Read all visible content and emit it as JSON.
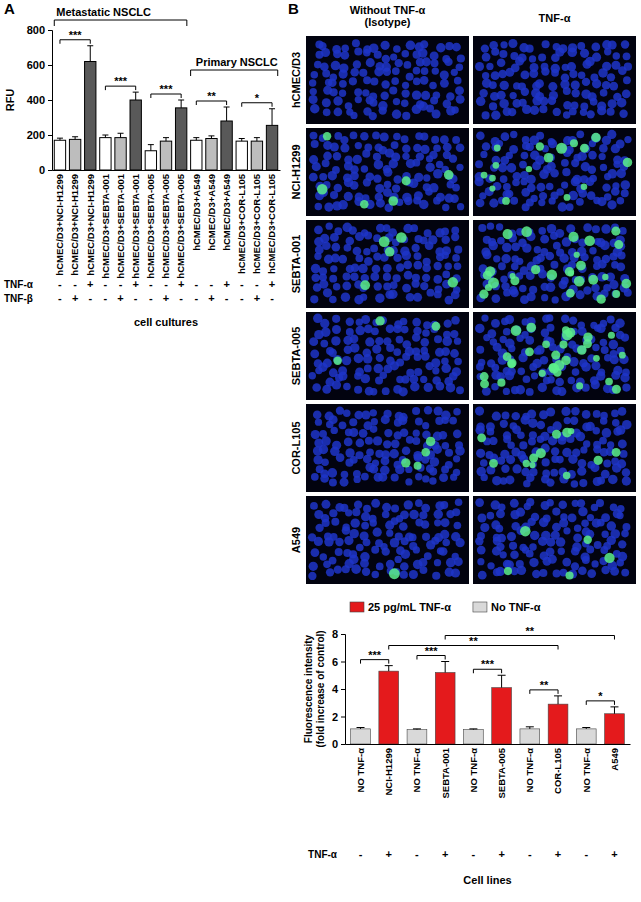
{
  "panel_labels": [
    "A",
    "B"
  ],
  "chart_data": [
    {
      "type": "bar",
      "ylabel": "RFU",
      "xlabel": "cell cultures",
      "categories": [
        "hCMEC/D3+NCI-H1299",
        "hCMEC/D3+NCI-H1299",
        "hCMEC/D3+NCI-H1299",
        "hCMEC/D3+SEBTA-001",
        "hCMEC/D3+SEBTA-001",
        "hCMEC/D3+SEBTA-001",
        "hCMEC/D3+SEBTA-005",
        "hCMEC/D3+SEBTA-005",
        "hCMEC/D3+SEBTA-005",
        "hCMEC/D3+A549",
        "hCMEC/D3+A549",
        "hCMEC/D3+A549",
        "hCMEC/D3+COR-L105",
        "hCMEC/D3+COR-L105",
        "hCMEC/D3+COR-L105"
      ],
      "values": [
        170,
        175,
        620,
        185,
        185,
        400,
        110,
        165,
        355,
        170,
        180,
        280,
        165,
        165,
        255
      ],
      "errors": [
        12,
        15,
        90,
        15,
        25,
        45,
        35,
        20,
        45,
        15,
        15,
        80,
        15,
        20,
        95
      ],
      "colors": [
        "#ffffff",
        "#bdbdbd",
        "#595959",
        "#ffffff",
        "#bdbdbd",
        "#595959",
        "#ffffff",
        "#bdbdbd",
        "#595959",
        "#ffffff",
        "#bdbdbd",
        "#595959",
        "#ffffff",
        "#bdbdbd",
        "#595959"
      ],
      "ylim": [
        0,
        800
      ],
      "yticks": [
        0,
        200,
        400,
        600,
        800
      ],
      "condition_rows": [
        {
          "label": "TNF-α",
          "values": [
            "-",
            "-",
            "+",
            "-",
            "-",
            "+",
            "-",
            "-",
            "+",
            "-",
            "-",
            "+",
            "-",
            "-",
            "+"
          ]
        },
        {
          "label": "TNF-β",
          "values": [
            "-",
            "+",
            "-",
            "-",
            "+",
            "-",
            "-",
            "+",
            "-",
            "-",
            "+",
            "-",
            "-",
            "+",
            "-"
          ]
        }
      ],
      "groups": [
        {
          "text": "Metastatic NSCLC",
          "between": [
            0,
            8
          ]
        },
        {
          "text": "Primary NSCLC",
          "between": [
            9,
            14
          ]
        }
      ],
      "annotations": [
        {
          "text": "***",
          "between": [
            0,
            2
          ]
        },
        {
          "text": "***",
          "between": [
            3,
            5
          ]
        },
        {
          "text": "***",
          "between": [
            6,
            8
          ]
        },
        {
          "text": "**",
          "between": [
            9,
            11
          ]
        },
        {
          "text": "*",
          "between": [
            12,
            14
          ]
        }
      ]
    },
    {
      "type": "bar",
      "ylabel": [
        "Fluorescence intensity",
        "(fold increase of control)"
      ],
      "xlabel": "Cell lines",
      "categories": [
        "NO TNF-α",
        "NCI-H1299",
        "NO TNF-α",
        "SEBTA-001",
        "NO TNF-α",
        "SEBTA-005",
        "NO TNF-α",
        "COR-L105",
        "NO TNF-α",
        "A549"
      ],
      "series": [
        {
          "name": "25 pg/mL TNF-α",
          "color": "#e41a1c",
          "values": [
            null,
            5.3,
            null,
            5.2,
            null,
            4.1,
            null,
            2.9,
            null,
            2.2
          ],
          "errors": [
            null,
            0.4,
            null,
            0.8,
            null,
            0.9,
            null,
            0.6,
            null,
            0.5
          ]
        },
        {
          "name": "No TNF-α",
          "color": "#d9d9d9",
          "values": [
            1.1,
            null,
            1.05,
            null,
            1.05,
            null,
            1.1,
            null,
            1.1,
            null
          ],
          "errors": [
            0.1,
            null,
            0.05,
            null,
            0.05,
            null,
            0.15,
            null,
            0.1,
            null
          ]
        }
      ],
      "ylim": [
        0,
        8
      ],
      "yticks": [
        0,
        2,
        4,
        6,
        8
      ],
      "legend": "top",
      "condition_rows": [
        {
          "label": "TNF-α",
          "values": [
            "-",
            "+",
            "-",
            "+",
            "-",
            "+",
            "-",
            "+",
            "-",
            "+"
          ]
        }
      ],
      "annotations": [
        {
          "text": "***",
          "between": [
            0,
            1
          ]
        },
        {
          "text": "***",
          "between": [
            2,
            3
          ]
        },
        {
          "text": "***",
          "between": [
            4,
            5
          ]
        },
        {
          "text": "**",
          "between": [
            6,
            7
          ]
        },
        {
          "text": "*",
          "between": [
            8,
            9
          ]
        },
        {
          "text": "**",
          "between": [
            1,
            7
          ]
        },
        {
          "text": "**",
          "between": [
            3,
            9
          ]
        }
      ]
    }
  ],
  "image_panel": {
    "column_titles": [
      [
        "Without TNF-α",
        "(Isotype)"
      ],
      [
        "TNF-α"
      ]
    ],
    "row_labels": [
      "hCMEC/D3",
      "NCI-H1299",
      "SEBTA-001",
      "SEBTA-005",
      "COR-L105",
      "A549"
    ]
  }
}
